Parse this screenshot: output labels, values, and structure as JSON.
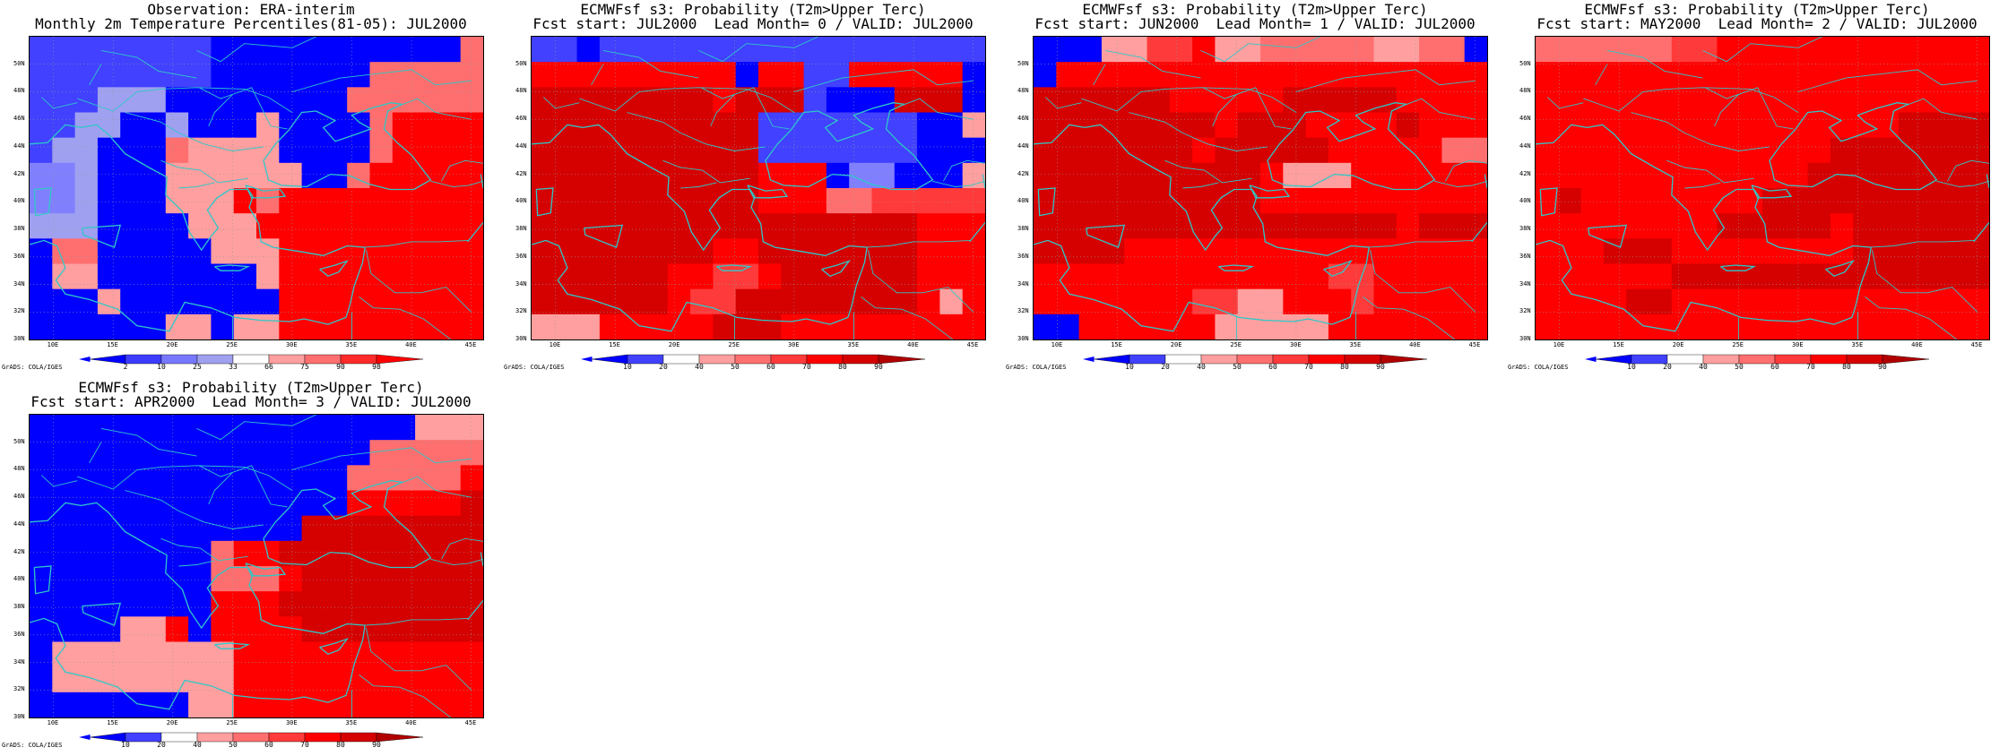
{
  "credit": "GrADS: COLA/IGES",
  "map_extent": {
    "lon": [
      8,
      46
    ],
    "lat": [
      30,
      52
    ]
  },
  "lat_ticks": [
    "30N",
    "32N",
    "34N",
    "36N",
    "38N",
    "40N",
    "42N",
    "44N",
    "46N",
    "48N",
    "50N"
  ],
  "lon_ticks": [
    "10E",
    "15E",
    "20E",
    "25E",
    "30E",
    "35E",
    "40E",
    "45E"
  ],
  "colors": {
    "coast": "#2ec8c8",
    "palette": [
      "#0000ff",
      "#4141ff",
      "#8080ff",
      "#a0a0f0",
      "#ffffff",
      "#ff9f9f",
      "#ff6f6f",
      "#ff3a3a",
      "#ff0000",
      "#d50000",
      "#b00000"
    ]
  },
  "panels": [
    {
      "title_line1": "Observation: ERA-interim",
      "title_line2": "Monthly 2m Temperature Percentiles(81-05): JUL2000",
      "colorbar_labels": [
        "2",
        "10",
        "25",
        "33",
        "66",
        "75",
        "90",
        "98"
      ],
      "colorbar_colors": [
        "#0000ff",
        "#3c3cff",
        "#7878ff",
        "#a0a0f0",
        "#ffffff",
        "#ff9f9f",
        "#ff6f6f",
        "#ff2a2a",
        "#ff0000"
      ],
      "grid": [
        "11111111000000000006",
        "11111111000000066666",
        "11133300000000666666",
        "11330030005000068888",
        "13300065555000068888",
        "22300055555500688888",
        "22300055586888888888",
        "33300005558888888888",
        "06600000555888888888",
        "05500000005888888888",
        "00050000000888888888",
        "00000055055888888888"
      ]
    },
    {
      "title_line1": "ECMWFsf s3: Probability (T2m>Upper Terc)",
      "title_line2": "Fcst start: JUL2000  Lead Month= 0 / VALID: JUL2000",
      "colorbar_labels": [
        "10",
        "20",
        "40",
        "50",
        "60",
        "70",
        "80",
        "90"
      ],
      "colorbar_colors": [
        "#0000ff",
        "#4141ff",
        "#ffffff",
        "#ff9f9f",
        "#ff6f6f",
        "#ff3a3a",
        "#ff0000",
        "#d50000",
        "#b00000"
      ],
      "grid": [
        "11011111111111111111",
        "88888888808811888880",
        "99999999899910009990",
        "99999999991111111005",
        "99999999991111111000",
        "99999999998880220005",
        "99999999998886677777",
        "99999999999999999888",
        "99999999889999999888",
        "99999988778999999888",
        "99999987799999999858",
        "55588888999888888888"
      ]
    },
    {
      "title_line1": "ECMWFsf s3: Probability (T2m>Upper Terc)",
      "title_line2": "Fcst start: JUN2000  Lead Month= 1 / VALID: JUL2000",
      "colorbar_labels": [
        "10",
        "20",
        "40",
        "50",
        "60",
        "70",
        "80",
        "90"
      ],
      "colorbar_colors": [
        "#0000ff",
        "#4141ff",
        "#ffffff",
        "#ff9f9f",
        "#ff6f6f",
        "#ff3a3a",
        "#ff0000",
        "#d50000",
        "#b00000"
      ],
      "grid": [
        "00055778556666655660",
        "08888888888888888888",
        "99999988888999998888",
        "99999999899988889888",
        "99999998999998888866",
        "99999999998555888888",
        "99999999998888888888",
        "99999999999999998999",
        "99998888888888888888",
        "88888888888887788888",
        "88888887755888788888",
        "00888888555558888888"
      ]
    },
    {
      "title_line1": "ECMWFsf s3: Probability (T2m>Upper Terc)",
      "title_line2": "Fcst start: MAY2000  Lead Month= 2 / VALID: JUL2000",
      "colorbar_labels": [
        "10",
        "20",
        "40",
        "50",
        "60",
        "70",
        "80",
        "90"
      ],
      "colorbar_colors": [
        "#0000ff",
        "#4141ff",
        "#ffffff",
        "#ff9f9f",
        "#ff6f6f",
        "#ff3a3a",
        "#ff0000",
        "#d50000",
        "#b00000"
      ],
      "grid": [
        "66666677888888888888",
        "88888888888888888888",
        "88888888888888888888",
        "88888888888888889999",
        "88888888888889999999",
        "88888888888899999999",
        "89888888889999999999",
        "88888888999998999999",
        "88899988888888999999",
        "88888899999999999999",
        "88889988888888888888",
        "88888888888888888888"
      ]
    },
    {
      "title_line1": "ECMWFsf s3: Probability (T2m>Upper Terc)",
      "title_line2": "Fcst start: APR2000  Lead Month= 3 / VALID: JUL2000",
      "colorbar_labels": [
        "10",
        "20",
        "40",
        "50",
        "60",
        "70",
        "80",
        "90"
      ],
      "colorbar_colors": [
        "#0000ff",
        "#4141ff",
        "#ffffff",
        "#ff9f9f",
        "#ff6f6f",
        "#ff3a3a",
        "#ff0000",
        "#d50000",
        "#b00000"
      ],
      "grid": [
        "00000000000000000555",
        "00000000000000066666",
        "00000000000000666668",
        "00000000000000888889",
        "00000000000099999999",
        "00000000688999999999",
        "00000000666899999999",
        "00000000888999999999",
        "00005580888899999999",
        "05555555588888888888",
        "05555555588888888888",
        "00000005588888888888"
      ]
    }
  ]
}
